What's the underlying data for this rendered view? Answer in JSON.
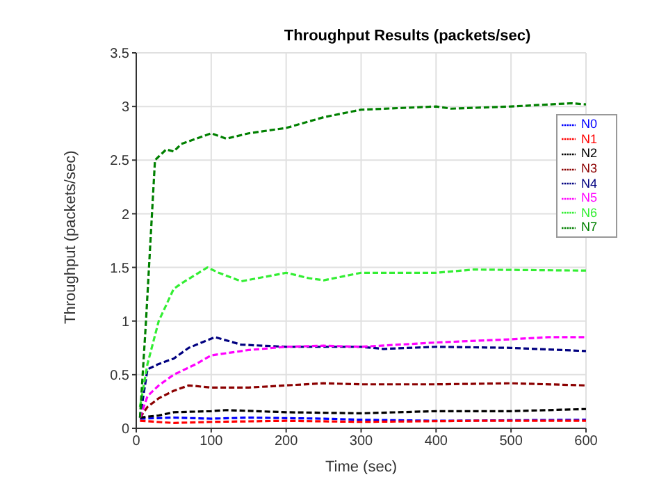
{
  "chart_data": {
    "type": "line",
    "title": "Throughput Results (packets/sec)",
    "xlabel": "Time (sec)",
    "ylabel": "Throughput (packets/sec)",
    "xlim": [
      0,
      600
    ],
    "xticks": [
      0,
      100,
      200,
      300,
      400,
      500,
      600
    ],
    "ylim": [
      0,
      3.5
    ],
    "yticks": [
      0,
      0.5,
      1,
      1.5,
      2,
      2.5,
      3,
      3.5
    ],
    "grid": true,
    "legend": "top right",
    "marker": "none",
    "line_style": "dashed",
    "series": [
      {
        "name": "N0",
        "color": "#0000ff",
        "x": [
          5,
          50,
          100,
          150,
          250,
          300,
          400,
          600
        ],
        "values": [
          0.09,
          0.1,
          0.09,
          0.1,
          0.09,
          0.08,
          0.07,
          0.08
        ]
      },
      {
        "name": "N1",
        "color": "#ff0000",
        "x": [
          5,
          50,
          100,
          200,
          300,
          450,
          600
        ],
        "values": [
          0.07,
          0.05,
          0.06,
          0.07,
          0.06,
          0.07,
          0.07
        ]
      },
      {
        "name": "N2",
        "color": "#000000",
        "x": [
          5,
          30,
          50,
          100,
          120,
          200,
          300,
          400,
          500,
          600
        ],
        "values": [
          0.1,
          0.12,
          0.15,
          0.16,
          0.17,
          0.15,
          0.14,
          0.16,
          0.16,
          0.18
        ]
      },
      {
        "name": "N3",
        "color": "#8b0000",
        "x": [
          5,
          15,
          30,
          50,
          70,
          100,
          150,
          200,
          250,
          300,
          400,
          500,
          600
        ],
        "values": [
          0.1,
          0.2,
          0.28,
          0.35,
          0.4,
          0.38,
          0.38,
          0.4,
          0.42,
          0.41,
          0.41,
          0.42,
          0.4
        ]
      },
      {
        "name": "N4",
        "color": "#000080",
        "x": [
          5,
          15,
          30,
          50,
          70,
          105,
          140,
          200,
          300,
          330,
          400,
          500,
          600
        ],
        "values": [
          0.1,
          0.55,
          0.6,
          0.65,
          0.75,
          0.85,
          0.78,
          0.76,
          0.76,
          0.74,
          0.76,
          0.75,
          0.72
        ]
      },
      {
        "name": "N5",
        "color": "#ff00ff",
        "x": [
          5,
          15,
          30,
          50,
          80,
          100,
          150,
          200,
          250,
          300,
          400,
          500,
          550,
          600
        ],
        "values": [
          0.1,
          0.3,
          0.4,
          0.5,
          0.6,
          0.68,
          0.73,
          0.76,
          0.77,
          0.76,
          0.8,
          0.83,
          0.85,
          0.85
        ]
      },
      {
        "name": "N6",
        "color": "#33ee33",
        "x": [
          5,
          15,
          30,
          50,
          60,
          95,
          110,
          140,
          200,
          230,
          250,
          300,
          400,
          450,
          600
        ],
        "values": [
          0.2,
          0.6,
          1.0,
          1.3,
          1.35,
          1.5,
          1.45,
          1.37,
          1.45,
          1.4,
          1.38,
          1.45,
          1.45,
          1.48,
          1.47
        ]
      },
      {
        "name": "N7",
        "color": "#008000",
        "x": [
          5,
          13,
          25,
          40,
          50,
          60,
          100,
          120,
          150,
          200,
          250,
          300,
          400,
          420,
          500,
          580,
          600
        ],
        "values": [
          0.1,
          1.0,
          2.5,
          2.6,
          2.58,
          2.65,
          2.75,
          2.7,
          2.75,
          2.8,
          2.9,
          2.97,
          3.0,
          2.98,
          3.0,
          3.03,
          3.02
        ]
      }
    ]
  }
}
